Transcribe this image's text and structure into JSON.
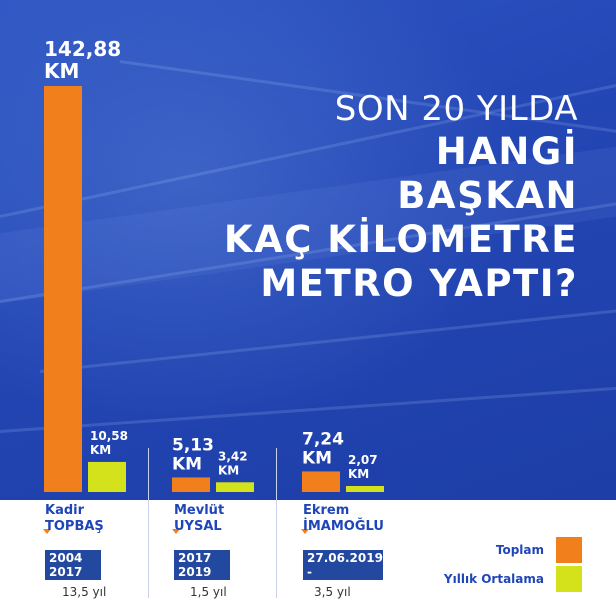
{
  "title": {
    "line1": "SON 20 YILDA",
    "line2": "HANGİ",
    "line3": "BAŞKAN",
    "line4": "KAÇ KİLOMETRE",
    "line5": "METRO YAPTI?"
  },
  "colors": {
    "total": "#f07f1c",
    "average": "#d4e21b",
    "background": "#2346b5",
    "accent_text": "#1f46b8"
  },
  "chart_data": {
    "type": "bar",
    "categories": [
      "Kadir TOPBAŞ",
      "Mevlüt UYSAL",
      "Ekrem İMAMOĞLU"
    ],
    "series": [
      {
        "name": "Toplam",
        "values": [
          142.88,
          5.13,
          7.24
        ],
        "labels": [
          "142,88",
          "5,13",
          "7,24"
        ]
      },
      {
        "name": "Yıllık Ortalama",
        "values": [
          10.58,
          3.42,
          2.07
        ],
        "labels": [
          "10,58",
          "3,42",
          "2,07"
        ]
      }
    ],
    "unit": "KM"
  },
  "mayors": [
    {
      "first": "Kadir",
      "last": "TOPBAŞ",
      "start": "2004",
      "end": "2017",
      "duration": "13,5 yıl"
    },
    {
      "first": "Mevlüt",
      "last": "UYSAL",
      "start": "2017",
      "end": "2019",
      "duration": "1,5 yıl"
    },
    {
      "first": "Ekrem",
      "last": "İMAMOĞLU",
      "start": "27.06.2019",
      "end": "-",
      "duration": "3,5 yıl"
    }
  ],
  "legend": {
    "total": "Toplam",
    "average": "Yıllık Ortalama"
  }
}
